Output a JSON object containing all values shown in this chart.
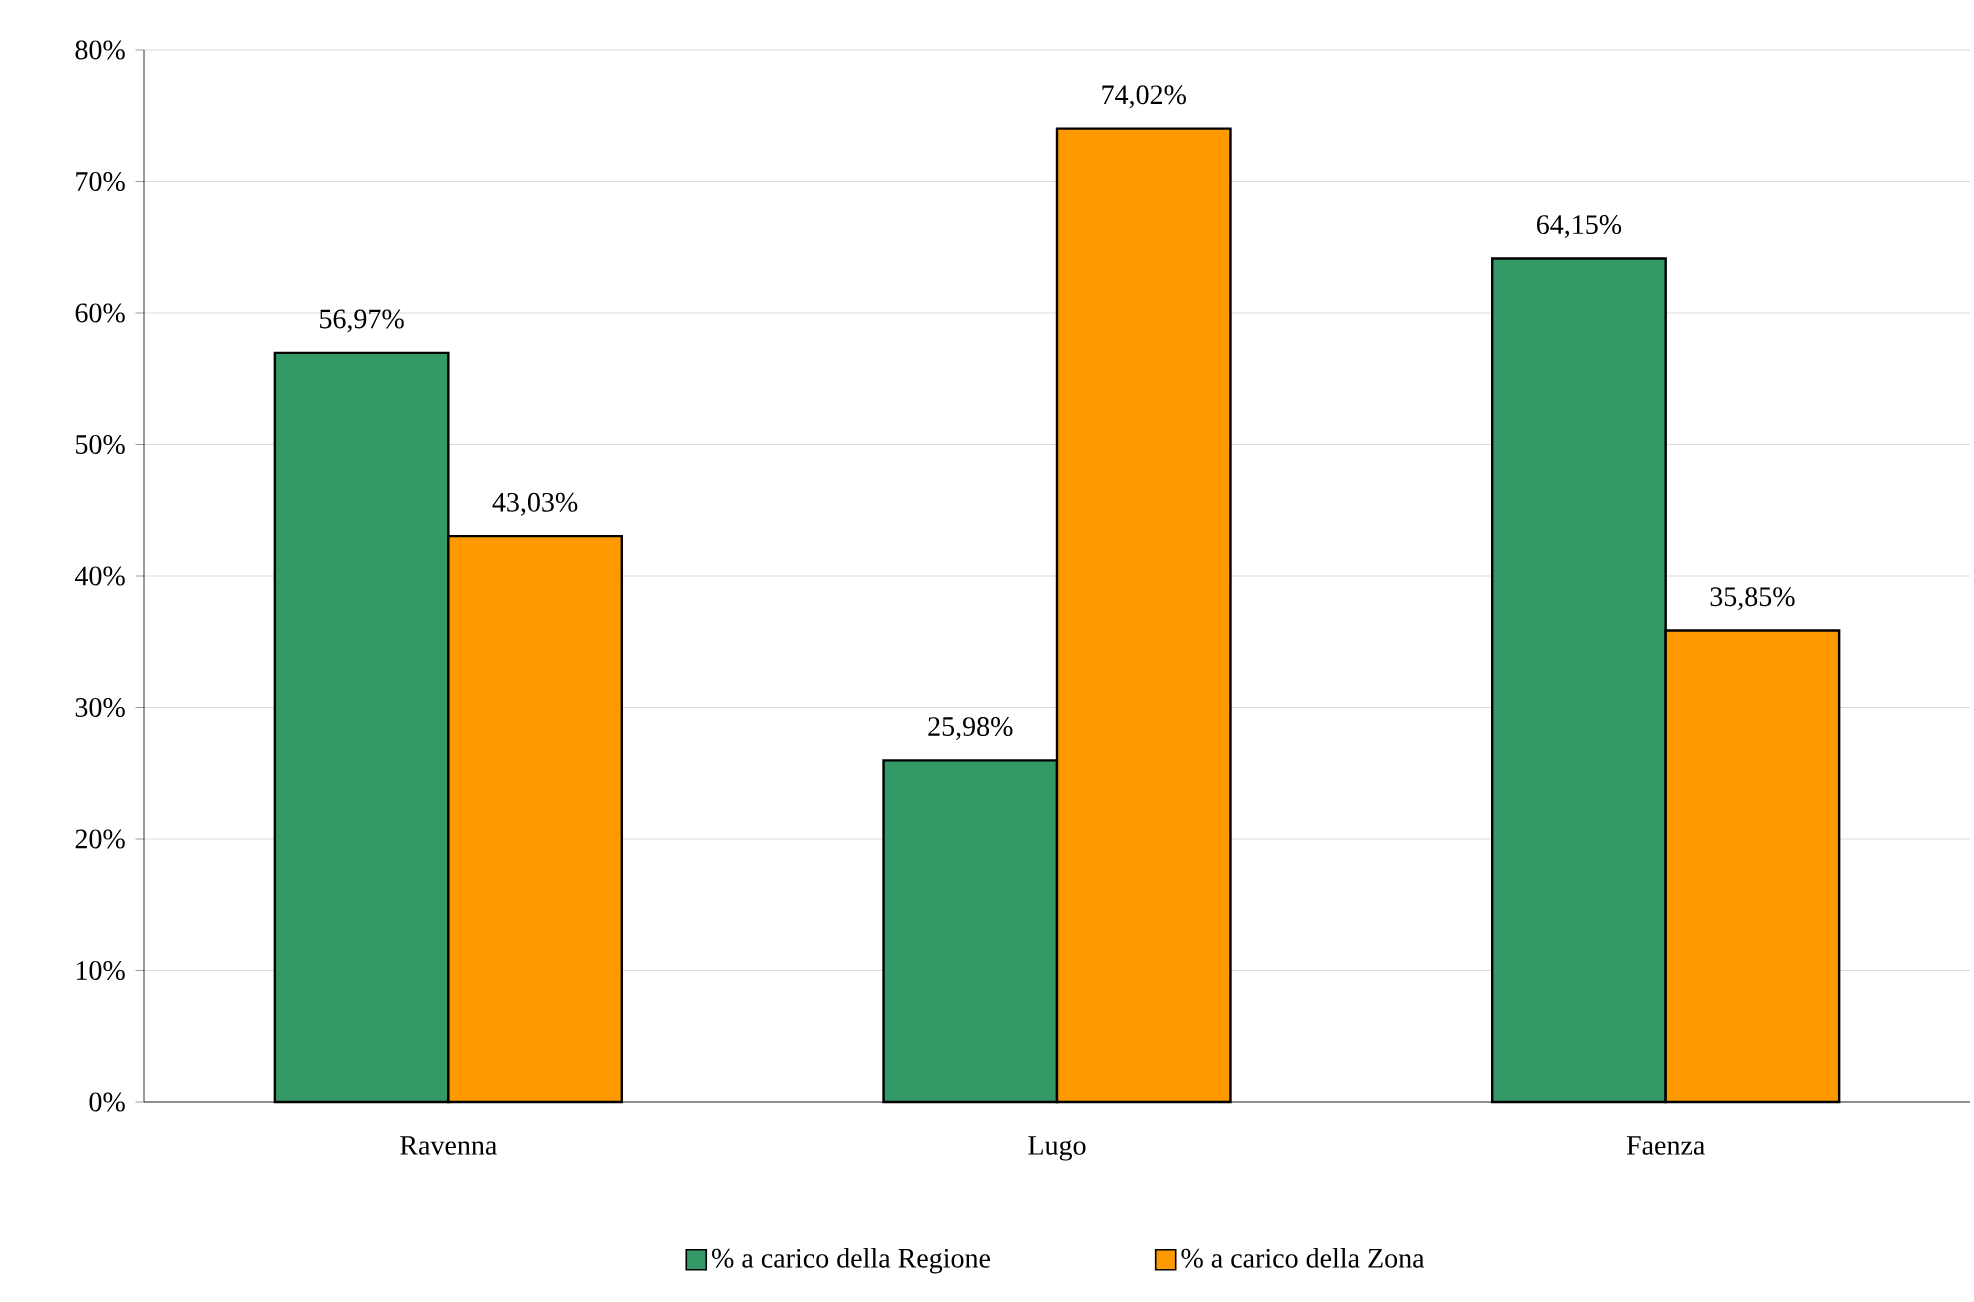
{
  "chart_data": {
    "type": "bar",
    "categories": [
      "Ravenna",
      "Lugo",
      "Faenza"
    ],
    "series": [
      {
        "name": "% a carico della Regione",
        "color": "#339966",
        "values": [
          56.97,
          25.98,
          64.15
        ],
        "value_labels": [
          "56,97%",
          "25,98%",
          "64,15%"
        ]
      },
      {
        "name": "% a carico della Zona",
        "color": "#ff9900",
        "values": [
          43.03,
          74.02,
          35.85
        ],
        "value_labels": [
          "43,03%",
          "74,02%",
          "35,85%"
        ]
      }
    ],
    "ylim": [
      0,
      80
    ],
    "yticks": [
      {
        "value": 0,
        "label": "0%"
      },
      {
        "value": 10,
        "label": "10%"
      },
      {
        "value": 20,
        "label": "20%"
      },
      {
        "value": 30,
        "label": "30%"
      },
      {
        "value": 40,
        "label": "40%"
      },
      {
        "value": 50,
        "label": "50%"
      },
      {
        "value": 60,
        "label": "60%"
      },
      {
        "value": 70,
        "label": "70%"
      },
      {
        "value": 80,
        "label": "80%"
      }
    ],
    "grid": "y",
    "legend": "bottom"
  }
}
